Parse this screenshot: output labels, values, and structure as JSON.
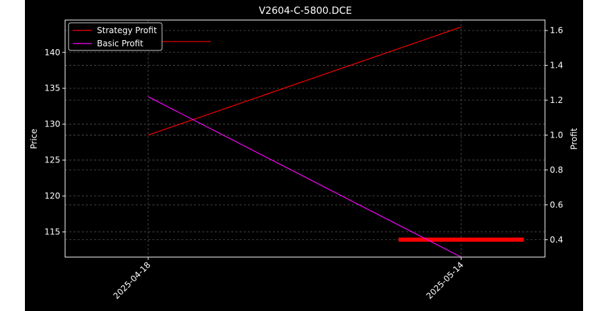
{
  "chart_data": {
    "type": "line",
    "title": "V2604-C-5800.DCE",
    "xlabel": "",
    "ylabel_left": "Price",
    "ylabel_right": "Profit",
    "x": [
      "2025-04-18",
      "2025-05-14"
    ],
    "x_tick_labels": [
      "2025-04-18",
      "2025-05-14"
    ],
    "y_left": {
      "range": [
        111.5,
        144.5
      ],
      "ticks": [
        115,
        120,
        125,
        130,
        135,
        140
      ]
    },
    "y_right": {
      "range": [
        0.3,
        1.66
      ],
      "ticks": [
        0.4,
        0.6,
        0.8,
        1.0,
        1.2,
        1.4,
        1.6
      ]
    },
    "series": [
      {
        "name": "Strategy Profit",
        "axis": "right",
        "color": "#ff0000",
        "values": [
          1.0,
          1.62
        ]
      },
      {
        "name": "Basic Profit",
        "axis": "right",
        "color": "#ff00ff",
        "values": [
          1.22,
          0.3
        ]
      }
    ],
    "annotations": [
      {
        "kind": "horizontal-segment",
        "axis": "left",
        "y": 141.5,
        "x_from": "2025-04-18",
        "x_to_fraction": 0.2,
        "color": "#ff0000",
        "thick": false
      },
      {
        "kind": "horizontal-segment",
        "axis": "right",
        "y": 0.4,
        "x_from_fraction": 0.8,
        "x_to_fraction": 1.2,
        "color": "#ff0000",
        "thick": true
      }
    ],
    "grid": true,
    "legend_position": "top-left",
    "background": "#000000"
  }
}
